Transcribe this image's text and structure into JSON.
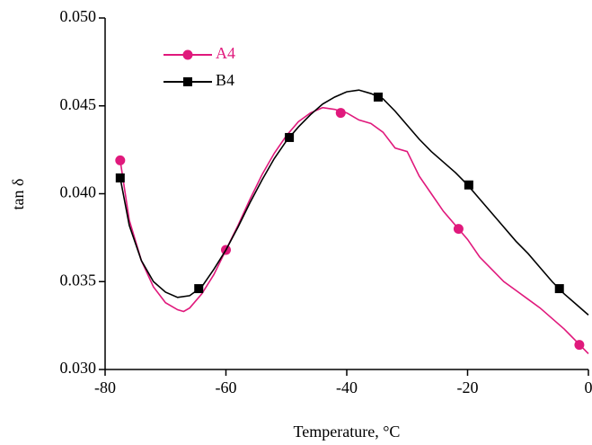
{
  "chart_data": {
    "type": "line",
    "x_label": "Temperature, °C",
    "y_label": "tan δ",
    "xlim": [
      -80,
      0
    ],
    "ylim": [
      0.03,
      0.05
    ],
    "xticks": [
      -80,
      -60,
      -40,
      -20,
      0
    ],
    "yticks": [
      {
        "value": 0.03,
        "label": "0.030"
      },
      {
        "value": 0.035,
        "label": "0.035"
      },
      {
        "value": 0.04,
        "label": "0.040"
      },
      {
        "value": 0.045,
        "label": "0.045"
      },
      {
        "value": 0.05,
        "label": "0.050"
      }
    ],
    "legend": "top-left",
    "series": [
      {
        "name": "A4",
        "color": "#e0197c",
        "marker": "circle",
        "x": [
          -77.5,
          -76,
          -74,
          -72,
          -70,
          -68,
          -67,
          -66,
          -64,
          -62,
          -60,
          -58,
          -56,
          -54,
          -52,
          -50,
          -48,
          -46,
          -44,
          -42,
          -40,
          -38,
          -36,
          -34,
          -32,
          -30,
          -28,
          -26,
          -24,
          -22,
          -20,
          -18,
          -16,
          -14,
          -12,
          -10,
          -8,
          -6,
          -4,
          -2,
          0
        ],
        "values": [
          0.0419,
          0.0385,
          0.0362,
          0.0347,
          0.0338,
          0.0334,
          0.0333,
          0.0335,
          0.0343,
          0.0354,
          0.0368,
          0.0382,
          0.0397,
          0.0411,
          0.0423,
          0.0433,
          0.0441,
          0.0446,
          0.0449,
          0.0448,
          0.0446,
          0.0442,
          0.044,
          0.0435,
          0.0426,
          0.0424,
          0.041,
          0.04,
          0.039,
          0.0382,
          0.0374,
          0.0364,
          0.0357,
          0.035,
          0.0345,
          0.034,
          0.0335,
          0.0329,
          0.0323,
          0.0316,
          0.0309
        ],
        "marker_x": [
          -77.5,
          -60,
          -41,
          -21.5,
          -1.5
        ],
        "marker_values": [
          0.0419,
          0.0368,
          0.0446,
          0.038,
          0.0314
        ]
      },
      {
        "name": "B4",
        "color": "#000000",
        "marker": "square",
        "x": [
          -77.5,
          -76,
          -74,
          -72,
          -70,
          -68,
          -66,
          -64,
          -62,
          -60,
          -58,
          -56,
          -54,
          -52,
          -50,
          -48,
          -46,
          -44,
          -42,
          -40,
          -38,
          -36,
          -34,
          -32,
          -30,
          -28,
          -26,
          -24,
          -22,
          -20,
          -18,
          -16,
          -14,
          -12,
          -10,
          -8,
          -6,
          -4,
          -2,
          0
        ],
        "values": [
          0.0409,
          0.0382,
          0.0362,
          0.035,
          0.0344,
          0.0341,
          0.0342,
          0.0347,
          0.0357,
          0.0368,
          0.0381,
          0.0395,
          0.0408,
          0.042,
          0.043,
          0.0438,
          0.0445,
          0.0451,
          0.0455,
          0.0458,
          0.0459,
          0.0457,
          0.0454,
          0.0447,
          0.0439,
          0.0431,
          0.0424,
          0.0418,
          0.0412,
          0.0405,
          0.0397,
          0.0389,
          0.0381,
          0.0373,
          0.0366,
          0.0358,
          0.035,
          0.0343,
          0.0337,
          0.0331
        ],
        "marker_x": [
          -77.5,
          -64.5,
          -49.5,
          -34.8,
          -19.8,
          -4.8
        ],
        "marker_values": [
          0.0409,
          0.0346,
          0.0432,
          0.0455,
          0.0405,
          0.0346
        ]
      }
    ]
  }
}
